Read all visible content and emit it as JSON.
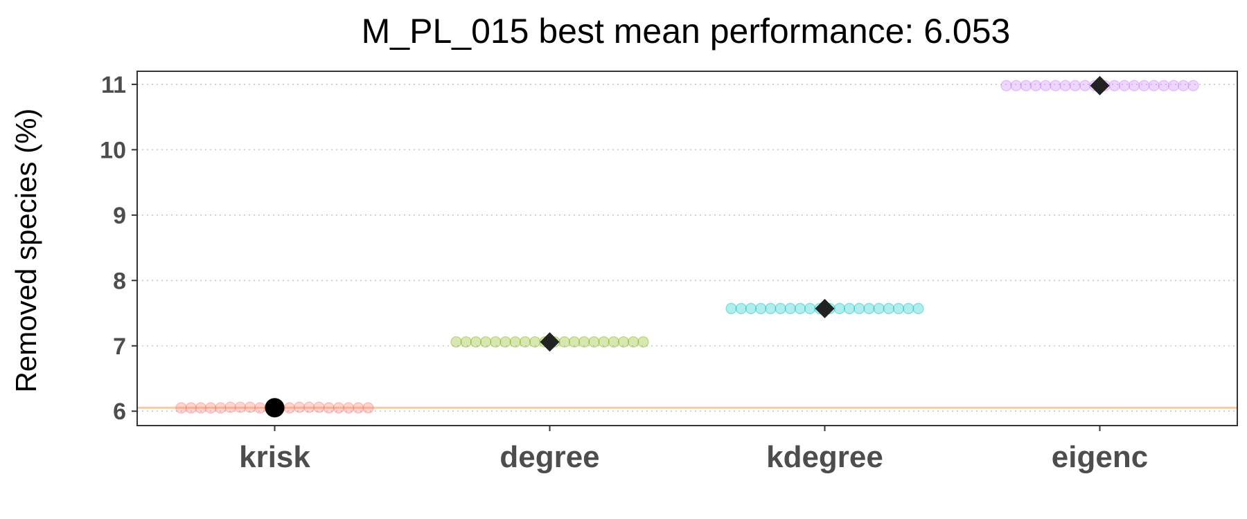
{
  "chart_data": {
    "type": "scatter",
    "title": "M_PL_015 best mean performance: 6.053",
    "xlabel": "",
    "ylabel": "Removed species (%)",
    "categories": [
      "krisk",
      "degree",
      "kdegree",
      "eigenc"
    ],
    "ylim": [
      5.78,
      11.2
    ],
    "yticks": [
      6,
      7,
      8,
      9,
      10,
      11
    ],
    "grid": "horizontal dotted",
    "reference_line": 6.053,
    "series": [
      {
        "category": "krisk",
        "mean": 6.053,
        "values": [
          6.05,
          6.05,
          6.05,
          6.05,
          6.05,
          6.06,
          6.06,
          6.06,
          6.05,
          6.05,
          6.05,
          6.05,
          6.06,
          6.06,
          6.06,
          6.05,
          6.05,
          6.05,
          6.05,
          6.05
        ],
        "color": "#f8766d",
        "mean_marker": "circle"
      },
      {
        "category": "degree",
        "mean": 7.06,
        "values": [
          7.06,
          7.06,
          7.06,
          7.06,
          7.06,
          7.06,
          7.06,
          7.06,
          7.06,
          7.06,
          7.06,
          7.06,
          7.06,
          7.06,
          7.06,
          7.06,
          7.06,
          7.06,
          7.06,
          7.06
        ],
        "color": "#7cae00",
        "mean_marker": "diamond"
      },
      {
        "category": "kdegree",
        "mean": 7.57,
        "values": [
          7.57,
          7.57,
          7.57,
          7.57,
          7.57,
          7.57,
          7.57,
          7.57,
          7.57,
          7.57,
          7.57,
          7.57,
          7.57,
          7.57,
          7.57,
          7.57,
          7.57,
          7.57,
          7.57,
          7.57
        ],
        "color": "#00bfc4",
        "mean_marker": "diamond"
      },
      {
        "category": "eigenc",
        "mean": 10.98,
        "values": [
          10.98,
          10.98,
          10.98,
          10.98,
          10.98,
          10.98,
          10.98,
          10.98,
          10.98,
          10.98,
          10.98,
          10.98,
          10.98,
          10.98,
          10.98,
          10.98,
          10.98,
          10.98,
          10.98,
          10.98
        ],
        "color": "#c77cff",
        "mean_marker": "diamond"
      }
    ],
    "reference_line_color": "#f5cba7",
    "mean_color": "#222222"
  }
}
